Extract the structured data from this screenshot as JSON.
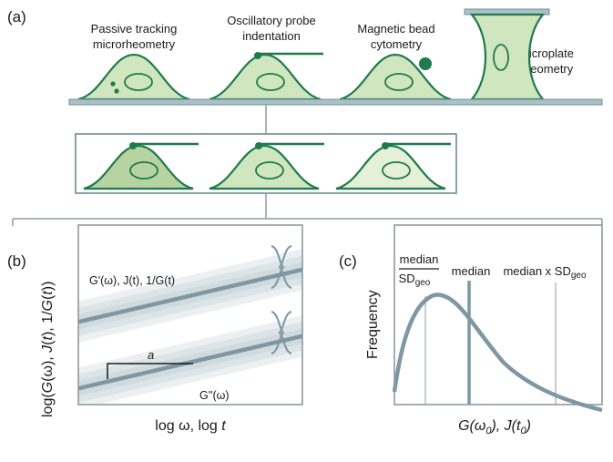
{
  "panel_a": {
    "label": "(a)",
    "techniques": [
      {
        "line1": "Passive tracking",
        "line2": "microrheometry"
      },
      {
        "line1": "Oscillatory probe",
        "line2": "indentation"
      },
      {
        "line1": "Magnetic bead",
        "line2": "cytometry"
      },
      {
        "line1": "Microplate",
        "line2": "rheometry"
      }
    ]
  },
  "panel_b": {
    "label": "(b)",
    "ylabel_parts": [
      "log(",
      "G",
      "(ω), ",
      "J",
      "(",
      "t",
      "), 1/",
      "G",
      "(",
      "t",
      "))"
    ],
    "xlabel_parts": [
      "log ω, log ",
      "t"
    ],
    "upper_curve_label": "G'(ω), J(t), 1/G(t)",
    "lower_curve_label": "G''(ω)",
    "slope_label": "a"
  },
  "panel_c": {
    "label": "(c)",
    "ylabel": "Frequency",
    "xlabel_main": "G(ω",
    "xlabel_sub0": "0",
    "xlabel_mid": "), J(t",
    "xlabel_sub1": "0",
    "xlabel_end": ")",
    "annotations": {
      "frac_num": "median",
      "frac_den": "SD",
      "frac_den_sub": "geo",
      "median": "median",
      "median_x": "median x SD",
      "median_x_sub": "geo"
    }
  },
  "colors": {
    "cell_fill": "#cfe6bf",
    "cell_fill_dark": "#b8d3a2",
    "cell_fill_light": "#e4f0d8",
    "cell_stroke": "#1f7a4c",
    "plate": "#a9c1c7",
    "plate_stroke": "#6f8f97",
    "curve": "#7f97a3",
    "frame": "#8f9aa0"
  }
}
